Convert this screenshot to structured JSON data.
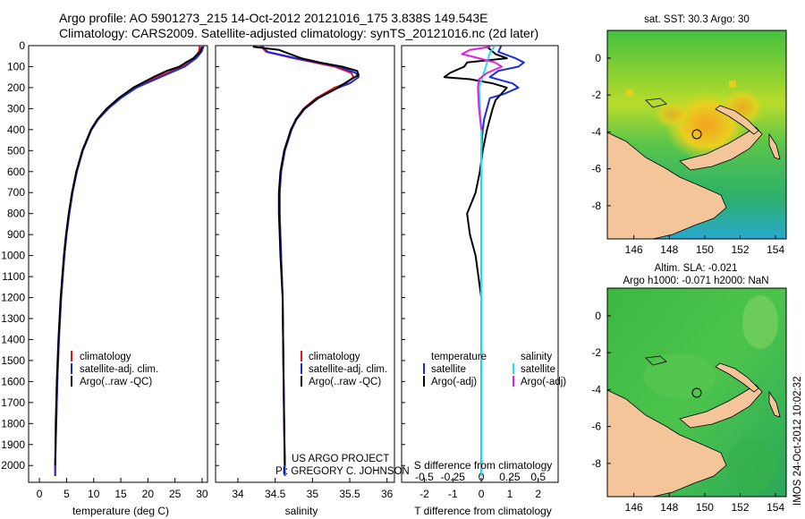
{
  "header": {
    "title_line1": "Argo profile: AO 5901273_215 14-Oct-2012 20121016_175 3.838S 149.543E",
    "title_line2": "Climatology: CARS2009. Satellite-adjusted climatology: synTS_20121016.nc (2d later)"
  },
  "credits": {
    "project": "US ARGO PROJECT",
    "pi": "PI: GREGORY C. JOHNSON"
  },
  "stamp": "IMOS 24-Oct-2012 10:02:32",
  "colors": {
    "climatology": "#ee1111",
    "satellite": "#1a2bdd",
    "argo": "#000000",
    "satellite_salinity": "#22e0f0",
    "argo_salinity": "#e020e0",
    "ocean": "#2fb84a",
    "land": "#f5c59a"
  },
  "chart_data": [
    {
      "type": "line",
      "panel": "temperature",
      "xlabel": "temperature (deg C)",
      "ylabel": "",
      "xlim": [
        -2,
        31
      ],
      "ylim": [
        2080,
        0
      ],
      "x_ticks": [
        0,
        5,
        10,
        15,
        20,
        25,
        30
      ],
      "y_ticks": [
        0,
        100,
        200,
        300,
        400,
        500,
        600,
        700,
        800,
        900,
        1000,
        1100,
        1200,
        1300,
        1400,
        1500,
        1600,
        1700,
        1800,
        1900,
        2000
      ],
      "legend": [
        "climatology",
        "satellite-adj. clim.",
        "Argo(..raw -QC)"
      ],
      "series": [
        {
          "name": "climatology",
          "depth": [
            0,
            30,
            60,
            100,
            150,
            200,
            250,
            300,
            350,
            400,
            500,
            600,
            700,
            800,
            900,
            1000,
            1200,
            1400,
            1600,
            1800,
            2000,
            2050
          ],
          "values": [
            29.6,
            29.4,
            28.5,
            26.2,
            21.8,
            17.6,
            14.8,
            12.6,
            10.8,
            9.6,
            8.0,
            6.9,
            6.1,
            5.5,
            5.0,
            4.6,
            4.0,
            3.6,
            3.3,
            3.1,
            2.9,
            2.9
          ]
        },
        {
          "name": "satellite-adj. clim.",
          "depth": [
            0,
            30,
            60,
            100,
            150,
            200,
            250,
            300,
            350,
            400,
            500,
            600,
            700,
            800,
            900,
            1000,
            1200,
            1400,
            1600,
            1800,
            2000,
            2050
          ],
          "values": [
            30.3,
            29.9,
            28.9,
            26.8,
            22.3,
            17.9,
            15.0,
            12.7,
            10.9,
            9.6,
            8.0,
            6.9,
            6.1,
            5.5,
            5.0,
            4.6,
            4.0,
            3.6,
            3.3,
            3.1,
            2.9,
            2.9
          ]
        },
        {
          "name": "Argo(..raw -QC)",
          "depth": [
            5,
            30,
            60,
            80,
            100,
            120,
            150,
            200,
            250,
            300,
            350,
            400,
            500,
            600,
            700,
            800,
            900,
            1000,
            1200,
            1400,
            1600,
            1800,
            2000
          ],
          "values": [
            30.0,
            29.6,
            28.4,
            27.0,
            25.8,
            23.5,
            21.0,
            17.3,
            14.6,
            12.4,
            10.7,
            9.5,
            7.9,
            6.8,
            6.0,
            5.4,
            4.9,
            4.5,
            3.9,
            3.5,
            3.2,
            3.0,
            2.9
          ]
        }
      ]
    },
    {
      "type": "line",
      "panel": "salinity",
      "xlabel": "salinity",
      "xlim": [
        33.7,
        36.1
      ],
      "ylim": [
        2080,
        0
      ],
      "x_ticks": [
        34,
        34.5,
        35,
        35.5,
        36
      ],
      "legend": [
        "climatology",
        "satellite-adj. clim.",
        "Argo(..raw -QC)"
      ],
      "series": [
        {
          "name": "climatology",
          "depth": [
            0,
            30,
            60,
            100,
            130,
            150,
            180,
            200,
            250,
            300,
            350,
            400,
            500,
            600,
            700,
            800,
            900,
            1000,
            1200,
            1500,
            1800,
            2050
          ],
          "values": [
            34.3,
            34.38,
            34.75,
            35.3,
            35.52,
            35.55,
            35.45,
            35.3,
            35.05,
            34.88,
            34.78,
            34.72,
            34.63,
            34.58,
            34.56,
            34.56,
            34.57,
            34.58,
            34.6,
            34.61,
            34.62,
            34.63
          ]
        },
        {
          "name": "satellite-adj. clim.",
          "depth": [
            0,
            30,
            60,
            100,
            130,
            150,
            180,
            200,
            250,
            300,
            350,
            400,
            500,
            600,
            700,
            800,
            900,
            1000,
            1200,
            1500,
            1800,
            2050
          ],
          "values": [
            34.32,
            34.4,
            34.78,
            35.35,
            35.58,
            35.62,
            35.5,
            35.35,
            35.08,
            34.9,
            34.79,
            34.72,
            34.63,
            34.58,
            34.56,
            34.56,
            34.57,
            34.58,
            34.6,
            34.61,
            34.62,
            34.63
          ]
        },
        {
          "name": "Argo(..raw -QC)",
          "depth": [
            5,
            20,
            40,
            60,
            80,
            100,
            120,
            140,
            160,
            200,
            250,
            300,
            350,
            400,
            500,
            600,
            700,
            800,
            900,
            1000,
            1200,
            1500,
            1800,
            2000
          ],
          "values": [
            34.2,
            34.55,
            34.7,
            34.85,
            35.1,
            35.4,
            35.6,
            35.62,
            35.52,
            35.34,
            35.07,
            34.89,
            34.78,
            34.71,
            34.62,
            34.57,
            34.55,
            34.55,
            34.56,
            34.57,
            34.6,
            34.61,
            34.62,
            34.63
          ]
        }
      ]
    },
    {
      "type": "line",
      "panel": "difference",
      "xlabel": "T difference from climatology",
      "xlabel_top": "S difference from climatology",
      "xlim": [
        -2.8,
        2.7
      ],
      "ylim": [
        2080,
        0
      ],
      "x_ticks": [
        -2,
        -1,
        0,
        1,
        2
      ],
      "x_ticks_top": [
        -0.5,
        -0.25,
        0,
        0.25,
        0.5
      ],
      "legend_temperature": [
        "satellite",
        "Argo(-adj)"
      ],
      "legend_salinity": [
        "satellite",
        "Argo(-adj)"
      ],
      "legend_temperature_title": "temperature",
      "legend_salinity_title": "salinity",
      "series": [
        {
          "name": "T satellite",
          "depth": [
            0,
            30,
            60,
            80,
            100,
            120,
            150,
            180,
            200,
            230,
            250,
            300,
            350,
            400,
            500,
            600,
            800,
            1000,
            1500,
            2050
          ],
          "values": [
            0.7,
            0.6,
            1.2,
            1.5,
            1.3,
            0.6,
            0.3,
            1.1,
            1.3,
            0.8,
            0.3,
            0.2,
            0.1,
            0.05,
            0.0,
            0.0,
            0.0,
            0.0,
            0.0,
            0.0
          ]
        },
        {
          "name": "T Argo(-adj)",
          "depth": [
            5,
            40,
            60,
            80,
            100,
            130,
            150,
            160,
            180,
            200,
            230,
            260,
            300,
            350,
            400,
            500,
            600,
            700,
            800,
            900,
            1000,
            1100,
            1200,
            1500,
            2000
          ],
          "values": [
            0.2,
            0.5,
            0.9,
            -0.5,
            -0.6,
            -1.1,
            -1.3,
            -0.4,
            0.4,
            0.9,
            0.7,
            0.5,
            0.4,
            0.3,
            0.2,
            0.05,
            -0.05,
            -0.2,
            -0.5,
            -0.4,
            -0.2,
            -0.1,
            0.0,
            0.0,
            0.0
          ]
        },
        {
          "name": "S satellite",
          "depth": [
            0,
            30,
            60,
            100,
            200,
            300,
            400,
            600,
            1000,
            1500,
            2050
          ],
          "values": [
            0.12,
            0.08,
            0.06,
            0.04,
            -0.02,
            -0.01,
            0.0,
            0.0,
            0.0,
            0.0,
            0.0
          ]
        },
        {
          "name": "S Argo(-adj)",
          "depth": [
            5,
            20,
            40,
            60,
            80,
            100,
            130,
            160,
            200,
            300,
            400
          ],
          "values": [
            0.08,
            -0.1,
            -0.17,
            -0.02,
            0.12,
            0.18,
            0.05,
            -0.02,
            -0.03,
            -0.02,
            0.0
          ]
        }
      ]
    },
    {
      "type": "heatmap",
      "panel": "sst_map",
      "title": "sat. SST: 30.3 Argo: 30",
      "xlim": [
        144.5,
        154.6
      ],
      "ylim": [
        -9.8,
        1.5
      ],
      "x_ticks": [
        146,
        148,
        150,
        152,
        154
      ],
      "y_ticks": [
        0,
        -2,
        -4,
        -6,
        -8
      ],
      "marker": {
        "lon": 149.543,
        "lat": -3.838
      }
    },
    {
      "type": "heatmap",
      "panel": "sla_map",
      "title_line1": "Altim. SLA: -0.021",
      "title_line2": "Argo h1000: -0.071 h2000: NaN",
      "xlim": [
        144.5,
        154.6
      ],
      "ylim": [
        -9.8,
        1.5
      ],
      "x_ticks": [
        146,
        148,
        150,
        152,
        154
      ],
      "y_ticks": [
        0,
        -2,
        -4,
        -6,
        -8
      ],
      "marker": {
        "lon": 149.543,
        "lat": -3.838
      }
    }
  ]
}
